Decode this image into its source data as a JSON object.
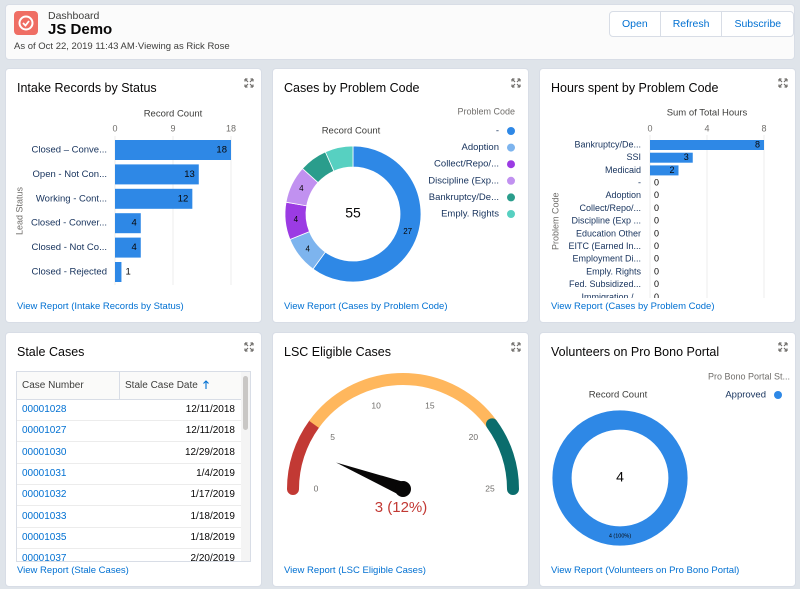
{
  "header": {
    "label": "Dashboard",
    "title": "JS Demo",
    "subtitle": "As of Oct 22, 2019 11:43 AM·Viewing as Rick Rose",
    "buttons": [
      "Open",
      "Refresh",
      "Subscribe"
    ]
  },
  "panels": [
    {
      "title": "Intake Records by Status",
      "link": "View Report (Intake Records by Status)"
    },
    {
      "title": "Cases by Problem Code",
      "link": "View Report (Cases by Problem Code)"
    },
    {
      "title": "Hours spent by Problem Code",
      "link": "View Report (Cases by Problem Code)"
    },
    {
      "title": "Stale Cases",
      "link": "View Report (Stale Cases)"
    },
    {
      "title": "LSC Eligible Cases",
      "link": "View Report (LSC Eligible Cases)"
    },
    {
      "title": "Volunteers on Pro Bono Portal",
      "link": "View Report (Volunteers on Pro Bono Portal)"
    }
  ],
  "table": {
    "columns": [
      "Case Number",
      "Stale Case Date"
    ],
    "rows": [
      [
        "00001028",
        "12/11/2018"
      ],
      [
        "00001027",
        "12/11/2018"
      ],
      [
        "00001030",
        "12/29/2018"
      ],
      [
        "00001031",
        "1/4/2019"
      ],
      [
        "00001032",
        "1/17/2019"
      ],
      [
        "00001033",
        "1/18/2019"
      ],
      [
        "00001035",
        "1/18/2019"
      ],
      [
        "00001037",
        "2/20/2019"
      ]
    ]
  },
  "chart_data": [
    {
      "type": "hbar",
      "axis_title": "Record Count",
      "y_axis_title": "Lead Status",
      "categories": [
        "Closed – Conve...",
        "Open - Not Con...",
        "Working - Cont...",
        "Closed - Conver...",
        "Closed - Not Co...",
        "Closed - Rejected"
      ],
      "values": [
        18,
        13,
        12,
        4,
        4,
        1
      ],
      "xlim": [
        0,
        18
      ],
      "xticks": [
        0,
        9,
        18
      ],
      "color": "#2e88e6",
      "grid": true
    },
    {
      "type": "donut",
      "axis_title": "Record Count",
      "legend_title": "Problem Code",
      "total": 55,
      "categories": [
        "-",
        "Adoption",
        "Collect/Repo/...",
        "Discipline (Exp...",
        "Bankruptcy/De...",
        "Emply. Rights"
      ],
      "values": [
        27,
        4,
        4,
        4,
        3,
        3
      ],
      "colors": [
        "#2e88e6",
        "#7db4ee",
        "#9b3be3",
        "#c191f0",
        "#2a9d8c",
        "#57d0c1"
      ]
    },
    {
      "type": "hbar",
      "axis_title": "Sum of Total Hours",
      "y_axis_title": "Problem Code",
      "categories": [
        "Bankruptcy/De...",
        "SSI",
        "Medicaid",
        "-",
        "Adoption",
        "Collect/Repo/...",
        "Discipline (Exp ...",
        "Education Other",
        "EITC (Earned In...",
        "Employment Di...",
        "Emply. Rights",
        "Fed. Subsidized...",
        "Immigration /..."
      ],
      "values": [
        8,
        3,
        2,
        0,
        0,
        0,
        0,
        0,
        0,
        0,
        0,
        0,
        0
      ],
      "xlim": [
        0,
        8
      ],
      "xticks": [
        0,
        4,
        8
      ],
      "color": "#2e88e6",
      "grid": true
    },
    {
      "type": "gauge",
      "value": 3,
      "value_label": "3 (12%)",
      "ylim": [
        0,
        25
      ],
      "yticks": [
        0,
        5,
        10,
        15,
        20,
        25
      ],
      "bands": [
        {
          "from": 0,
          "to": 5,
          "color": "#c23934"
        },
        {
          "from": 5,
          "to": 20,
          "color": "#ffb75d"
        },
        {
          "from": 20,
          "to": 25,
          "color": "#0b6d6d"
        }
      ]
    },
    {
      "type": "donut",
      "axis_title": "Record Count",
      "legend_title": "Pro Bono Portal St...",
      "total": 4,
      "categories": [
        "Approved"
      ],
      "values": [
        4
      ],
      "value_labels": [
        "4 (100%)"
      ],
      "colors": [
        "#2e88e6"
      ]
    }
  ]
}
